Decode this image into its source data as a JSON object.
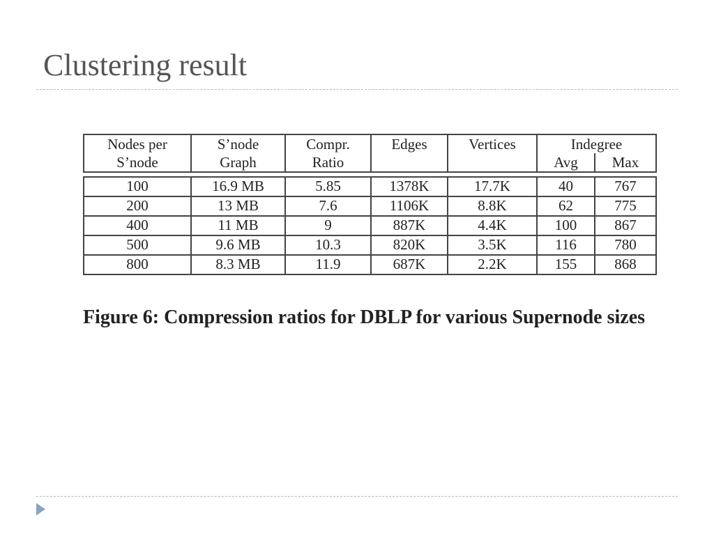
{
  "slide": {
    "title": "Clustering result"
  },
  "table": {
    "header": {
      "columns": [
        [
          "Nodes per",
          "S’node"
        ],
        [
          "S’node",
          "Graph"
        ],
        [
          "Compr.",
          "Ratio"
        ],
        [
          "Edges"
        ],
        [
          "Vertices"
        ]
      ],
      "group": "Indegree",
      "subcolumns": [
        "Avg",
        "Max"
      ]
    },
    "rows": [
      [
        "100",
        "16.9 MB",
        "5.85",
        "1378K",
        "17.7K",
        "40",
        "767"
      ],
      [
        "200",
        "13 MB",
        "7.6",
        "1106K",
        "8.8K",
        "62",
        "775"
      ],
      [
        "400",
        "11 MB",
        "9",
        "887K",
        "4.4K",
        "100",
        "867"
      ],
      [
        "500",
        "9.6 MB",
        "10.3",
        "820K",
        "3.5K",
        "116",
        "780"
      ],
      [
        "800",
        "8.3 MB",
        "11.9",
        "687K",
        "2.2K",
        "155",
        "868"
      ]
    ]
  },
  "caption": "Figure 6: Compression ratios for DBLP for various Supernode sizes"
}
